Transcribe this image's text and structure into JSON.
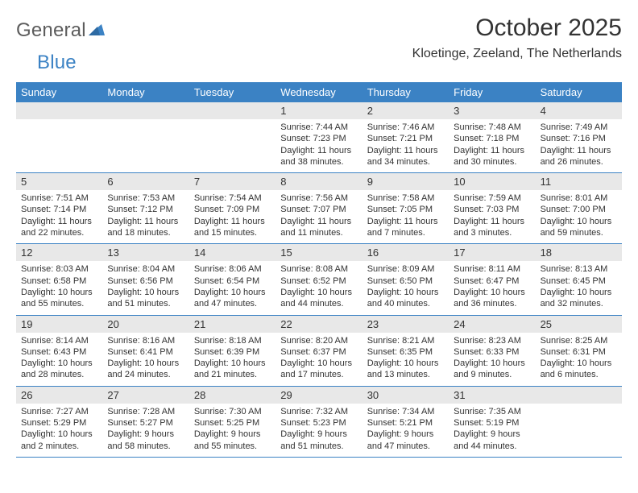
{
  "logo": {
    "text1": "General",
    "text2": "Blue",
    "brand_gray": "#5c5c5c",
    "brand_blue": "#3b82c4"
  },
  "title": "October 2025",
  "location": "Kloetinge, Zeeland, The Netherlands",
  "header_bg": "#3b82c4",
  "daynum_bg": "#e8e8e8",
  "text_color": "#333333",
  "dow": [
    "Sunday",
    "Monday",
    "Tuesday",
    "Wednesday",
    "Thursday",
    "Friday",
    "Saturday"
  ],
  "weeks": [
    [
      null,
      null,
      null,
      {
        "n": "1",
        "sr": "7:44 AM",
        "ss": "7:23 PM",
        "dl": "11 hours and 38 minutes."
      },
      {
        "n": "2",
        "sr": "7:46 AM",
        "ss": "7:21 PM",
        "dl": "11 hours and 34 minutes."
      },
      {
        "n": "3",
        "sr": "7:48 AM",
        "ss": "7:18 PM",
        "dl": "11 hours and 30 minutes."
      },
      {
        "n": "4",
        "sr": "7:49 AM",
        "ss": "7:16 PM",
        "dl": "11 hours and 26 minutes."
      }
    ],
    [
      {
        "n": "5",
        "sr": "7:51 AM",
        "ss": "7:14 PM",
        "dl": "11 hours and 22 minutes."
      },
      {
        "n": "6",
        "sr": "7:53 AM",
        "ss": "7:12 PM",
        "dl": "11 hours and 18 minutes."
      },
      {
        "n": "7",
        "sr": "7:54 AM",
        "ss": "7:09 PM",
        "dl": "11 hours and 15 minutes."
      },
      {
        "n": "8",
        "sr": "7:56 AM",
        "ss": "7:07 PM",
        "dl": "11 hours and 11 minutes."
      },
      {
        "n": "9",
        "sr": "7:58 AM",
        "ss": "7:05 PM",
        "dl": "11 hours and 7 minutes."
      },
      {
        "n": "10",
        "sr": "7:59 AM",
        "ss": "7:03 PM",
        "dl": "11 hours and 3 minutes."
      },
      {
        "n": "11",
        "sr": "8:01 AM",
        "ss": "7:00 PM",
        "dl": "10 hours and 59 minutes."
      }
    ],
    [
      {
        "n": "12",
        "sr": "8:03 AM",
        "ss": "6:58 PM",
        "dl": "10 hours and 55 minutes."
      },
      {
        "n": "13",
        "sr": "8:04 AM",
        "ss": "6:56 PM",
        "dl": "10 hours and 51 minutes."
      },
      {
        "n": "14",
        "sr": "8:06 AM",
        "ss": "6:54 PM",
        "dl": "10 hours and 47 minutes."
      },
      {
        "n": "15",
        "sr": "8:08 AM",
        "ss": "6:52 PM",
        "dl": "10 hours and 44 minutes."
      },
      {
        "n": "16",
        "sr": "8:09 AM",
        "ss": "6:50 PM",
        "dl": "10 hours and 40 minutes."
      },
      {
        "n": "17",
        "sr": "8:11 AM",
        "ss": "6:47 PM",
        "dl": "10 hours and 36 minutes."
      },
      {
        "n": "18",
        "sr": "8:13 AM",
        "ss": "6:45 PM",
        "dl": "10 hours and 32 minutes."
      }
    ],
    [
      {
        "n": "19",
        "sr": "8:14 AM",
        "ss": "6:43 PM",
        "dl": "10 hours and 28 minutes."
      },
      {
        "n": "20",
        "sr": "8:16 AM",
        "ss": "6:41 PM",
        "dl": "10 hours and 24 minutes."
      },
      {
        "n": "21",
        "sr": "8:18 AM",
        "ss": "6:39 PM",
        "dl": "10 hours and 21 minutes."
      },
      {
        "n": "22",
        "sr": "8:20 AM",
        "ss": "6:37 PM",
        "dl": "10 hours and 17 minutes."
      },
      {
        "n": "23",
        "sr": "8:21 AM",
        "ss": "6:35 PM",
        "dl": "10 hours and 13 minutes."
      },
      {
        "n": "24",
        "sr": "8:23 AM",
        "ss": "6:33 PM",
        "dl": "10 hours and 9 minutes."
      },
      {
        "n": "25",
        "sr": "8:25 AM",
        "ss": "6:31 PM",
        "dl": "10 hours and 6 minutes."
      }
    ],
    [
      {
        "n": "26",
        "sr": "7:27 AM",
        "ss": "5:29 PM",
        "dl": "10 hours and 2 minutes."
      },
      {
        "n": "27",
        "sr": "7:28 AM",
        "ss": "5:27 PM",
        "dl": "9 hours and 58 minutes."
      },
      {
        "n": "28",
        "sr": "7:30 AM",
        "ss": "5:25 PM",
        "dl": "9 hours and 55 minutes."
      },
      {
        "n": "29",
        "sr": "7:32 AM",
        "ss": "5:23 PM",
        "dl": "9 hours and 51 minutes."
      },
      {
        "n": "30",
        "sr": "7:34 AM",
        "ss": "5:21 PM",
        "dl": "9 hours and 47 minutes."
      },
      {
        "n": "31",
        "sr": "7:35 AM",
        "ss": "5:19 PM",
        "dl": "9 hours and 44 minutes."
      },
      null
    ]
  ]
}
